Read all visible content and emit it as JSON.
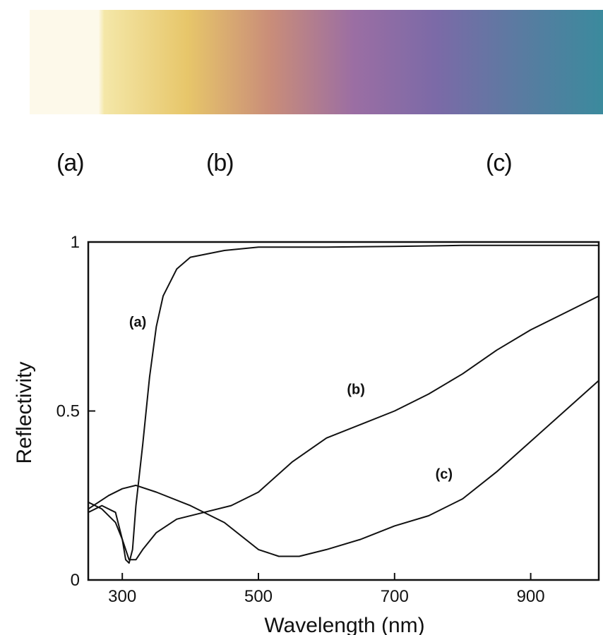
{
  "swatch_labels": [
    "(a)",
    "(b)",
    "(c)"
  ],
  "gradient_colors": [
    "#fdf9ea",
    "#f4e7a8",
    "#e7c66a",
    "#c98d79",
    "#9b6ea3",
    "#7b6aa7",
    "#5a7ba1",
    "#3b8a9d"
  ],
  "chart_data": {
    "type": "line",
    "title": "",
    "xlabel": "Wavelength (nm)",
    "ylabel": "Reflectivity",
    "xlim": [
      250,
      1000
    ],
    "ylim": [
      0,
      1
    ],
    "xticks": [
      300,
      500,
      700,
      900
    ],
    "yticks": [
      0,
      0.5,
      1
    ],
    "ytick_labels": [
      "0",
      "0.5",
      "1"
    ],
    "grid": false,
    "series": [
      {
        "name": "(a)",
        "x": [
          250,
          270,
          290,
          300,
          305,
          310,
          315,
          320,
          330,
          340,
          350,
          360,
          380,
          400,
          450,
          500,
          600,
          700,
          800,
          900,
          1000
        ],
        "y": [
          0.23,
          0.21,
          0.17,
          0.12,
          0.06,
          0.05,
          0.09,
          0.22,
          0.4,
          0.6,
          0.75,
          0.84,
          0.92,
          0.955,
          0.975,
          0.985,
          0.985,
          0.987,
          0.99,
          0.99,
          0.99
        ]
      },
      {
        "name": "(b)",
        "x": [
          250,
          270,
          290,
          300,
          310,
          320,
          330,
          350,
          380,
          420,
          460,
          500,
          550,
          600,
          650,
          700,
          750,
          800,
          850,
          900,
          950,
          1000
        ],
        "y": [
          0.2,
          0.22,
          0.2,
          0.12,
          0.06,
          0.06,
          0.09,
          0.14,
          0.18,
          0.2,
          0.22,
          0.26,
          0.35,
          0.42,
          0.46,
          0.5,
          0.55,
          0.61,
          0.68,
          0.74,
          0.79,
          0.84
        ]
      },
      {
        "name": "(c)",
        "x": [
          250,
          280,
          300,
          320,
          350,
          400,
          450,
          500,
          530,
          560,
          600,
          650,
          700,
          750,
          800,
          850,
          900,
          950,
          1000
        ],
        "y": [
          0.21,
          0.25,
          0.27,
          0.28,
          0.26,
          0.22,
          0.17,
          0.09,
          0.07,
          0.07,
          0.09,
          0.12,
          0.16,
          0.19,
          0.24,
          0.32,
          0.41,
          0.5,
          0.59
        ]
      }
    ],
    "annotations": [
      {
        "text": "(a)",
        "x": 310,
        "y": 0.75
      },
      {
        "text": "(b)",
        "x": 630,
        "y": 0.55
      },
      {
        "text": "(c)",
        "x": 760,
        "y": 0.3
      }
    ]
  }
}
